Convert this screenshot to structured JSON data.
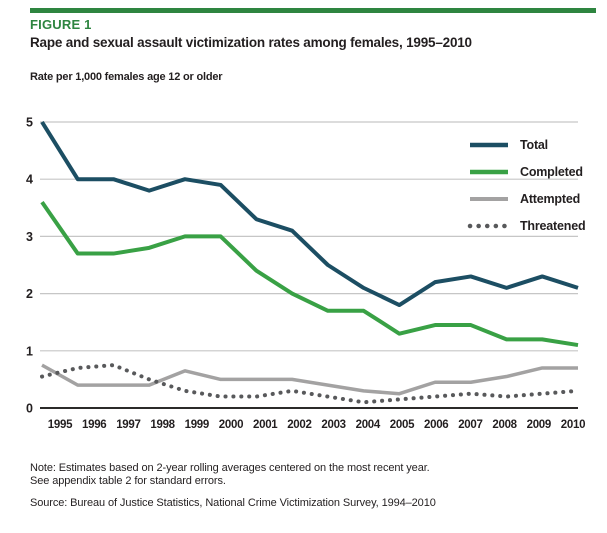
{
  "figure": {
    "label": "FIGURE 1",
    "title": "Rape and sexual assault victimization rates among females, 1995–2010",
    "units_label": "Rate per 1,000 females age 12 or older"
  },
  "notes": {
    "line1": "Note: Estimates based on 2-year rolling averages centered on the most recent year.",
    "line2": "See appendix table 2 for standard errors.",
    "source": "Source: Bureau of Justice Statistics, National Crime Victimization Survey, 1994–2010"
  },
  "colors": {
    "accent_green": "#2e8540",
    "text": "#231f20",
    "gridline": "#c6c6c6",
    "axis": "#2b2a29"
  },
  "chart_data": {
    "type": "line",
    "title": "Rape and sexual assault victimization rates among females, 1995–2010",
    "ylabel": "Rate per 1,000 females age 12 or older",
    "categories": [
      "1995",
      "1996",
      "1997",
      "1998",
      "1999",
      "2000",
      "2001",
      "2002",
      "2003",
      "2004",
      "2005",
      "2006",
      "2007",
      "2008",
      "2009",
      "2010"
    ],
    "ylim": [
      0,
      5
    ],
    "yticks": [
      0,
      1,
      2,
      3,
      4,
      5
    ],
    "grid": "horizontal",
    "legend_position": "top-right",
    "series": [
      {
        "name": "Total",
        "color": "#1c4e63",
        "style": "solid",
        "width": 4,
        "values": [
          5.0,
          4.0,
          4.0,
          3.8,
          4.0,
          3.9,
          3.3,
          3.1,
          2.5,
          2.1,
          1.8,
          2.2,
          2.3,
          2.1,
          2.3,
          2.1
        ]
      },
      {
        "name": "Completed",
        "color": "#39a145",
        "style": "solid",
        "width": 4,
        "values": [
          3.6,
          2.7,
          2.7,
          2.8,
          3.0,
          3.0,
          2.4,
          2.0,
          1.7,
          1.7,
          1.3,
          1.45,
          1.45,
          1.2,
          1.2,
          1.1
        ]
      },
      {
        "name": "Attempted",
        "color": "#a3a2a2",
        "style": "solid",
        "width": 3.5,
        "values": [
          0.75,
          0.4,
          0.4,
          0.4,
          0.65,
          0.5,
          0.5,
          0.5,
          0.4,
          0.3,
          0.25,
          0.45,
          0.45,
          0.55,
          0.7,
          0.7
        ]
      },
      {
        "name": "Threatened",
        "color": "#58595b",
        "style": "dotted",
        "width": 4,
        "values": [
          0.55,
          0.7,
          0.75,
          0.5,
          0.3,
          0.2,
          0.2,
          0.3,
          0.2,
          0.1,
          0.15,
          0.2,
          0.25,
          0.2,
          0.25,
          0.3
        ]
      }
    ]
  }
}
